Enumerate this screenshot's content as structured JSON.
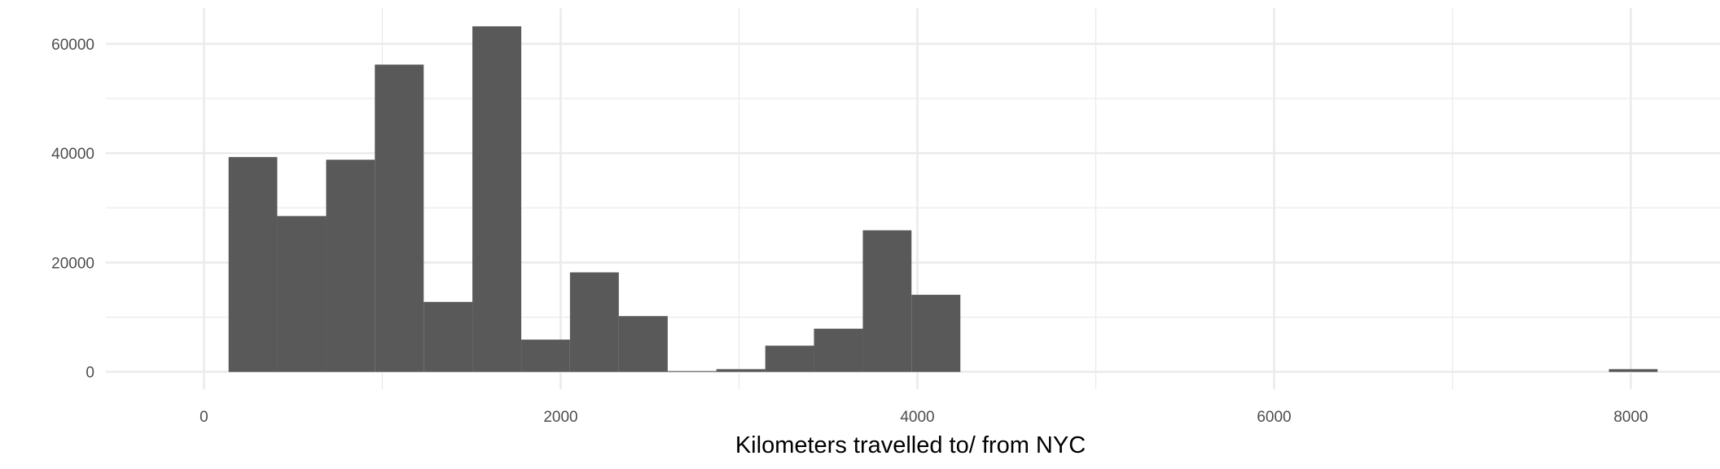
{
  "chart_data": {
    "type": "bar",
    "xlabel": "Kilometers travelled to/ from NYC",
    "ylabel": "",
    "xlim": [
      -550,
      8500
    ],
    "ylim": [
      -3168,
      66528
    ],
    "x_ticks": [
      0,
      2000,
      4000,
      6000,
      8000
    ],
    "x_tick_labels": [
      "0",
      "2000",
      "4000",
      "6000",
      "8000"
    ],
    "y_ticks": [
      0,
      20000,
      40000,
      60000
    ],
    "y_tick_labels": [
      "0",
      "20000",
      "40000",
      "60000"
    ],
    "grid": true,
    "bar_color": "#595959",
    "bins": [
      {
        "x0": 138,
        "x1": 411,
        "value": 39300
      },
      {
        "x0": 411,
        "x1": 685,
        "value": 28500
      },
      {
        "x0": 685,
        "x1": 958,
        "value": 38800
      },
      {
        "x0": 958,
        "x1": 1232,
        "value": 56200
      },
      {
        "x0": 1232,
        "x1": 1505,
        "value": 12800
      },
      {
        "x0": 1505,
        "x1": 1779,
        "value": 63200
      },
      {
        "x0": 1779,
        "x1": 2052,
        "value": 5900
      },
      {
        "x0": 2052,
        "x1": 2326,
        "value": 18200
      },
      {
        "x0": 2326,
        "x1": 2600,
        "value": 10200
      },
      {
        "x0": 2600,
        "x1": 2873,
        "value": 150
      },
      {
        "x0": 2873,
        "x1": 3147,
        "value": 500
      },
      {
        "x0": 3147,
        "x1": 3420,
        "value": 4800
      },
      {
        "x0": 3420,
        "x1": 3694,
        "value": 7900
      },
      {
        "x0": 3694,
        "x1": 3967,
        "value": 25900
      },
      {
        "x0": 3967,
        "x1": 4241,
        "value": 14100
      },
      {
        "x0": 7877,
        "x1": 8150,
        "value": 500
      }
    ]
  }
}
